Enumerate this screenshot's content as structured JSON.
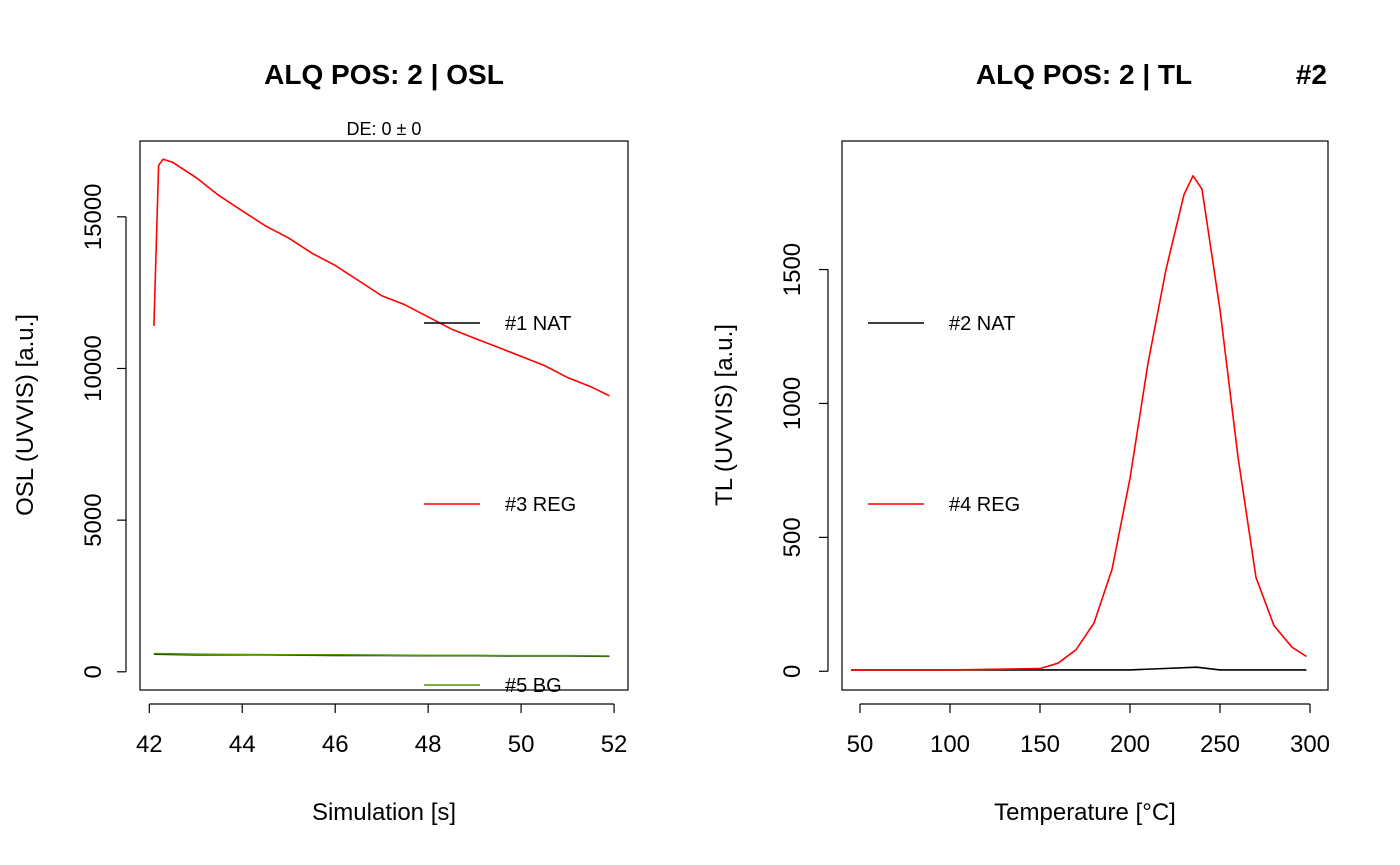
{
  "chart_data": [
    {
      "type": "line",
      "title": "ALQ POS: 2 | OSL",
      "subtitle": "DE: 0 ± 0",
      "xlabel": "Simulation [s]",
      "ylabel": "OSL (UVVIS) [a.u.]",
      "xlim": [
        41.8,
        52.3
      ],
      "ylim": [
        -600,
        17500
      ],
      "xticks": [
        42,
        44,
        46,
        48,
        50,
        52
      ],
      "yticks": [
        0,
        5000,
        10000,
        15000
      ],
      "legend_position": "right",
      "legend": [
        {
          "label": "#1 NAT",
          "color": "#000000"
        },
        {
          "label": "#3 REG",
          "color": "#ff0000"
        },
        {
          "label": "#5 BG",
          "color": "#4d9900"
        }
      ],
      "series": [
        {
          "name": "#1 NAT",
          "color": "#000000",
          "x": [
            42.1,
            43,
            44,
            45,
            46,
            47,
            48,
            49,
            50,
            51,
            51.9
          ],
          "y": [
            580,
            560,
            560,
            550,
            540,
            540,
            530,
            530,
            520,
            520,
            510
          ]
        },
        {
          "name": "#3 REG",
          "color": "#ff0000",
          "x": [
            42.1,
            42.2,
            42.3,
            42.5,
            42.7,
            43.0,
            43.5,
            44.0,
            44.5,
            45.0,
            45.5,
            46.0,
            46.5,
            47.0,
            47.5,
            48.0,
            48.5,
            49.0,
            49.5,
            50.0,
            50.5,
            51.0,
            51.5,
            51.9
          ],
          "y": [
            11400,
            16700,
            16900,
            16800,
            16600,
            16300,
            15700,
            15200,
            14700,
            14300,
            13800,
            13400,
            12900,
            12400,
            12100,
            11700,
            11300,
            11000,
            10700,
            10400,
            10100,
            9700,
            9400,
            9100
          ]
        },
        {
          "name": "#5 BG",
          "color": "#4d9900",
          "x": [
            42.1,
            43,
            44,
            45,
            46,
            47,
            48,
            49,
            50,
            51,
            51.9
          ],
          "y": [
            600,
            580,
            570,
            560,
            560,
            550,
            540,
            540,
            530,
            530,
            520
          ]
        }
      ]
    },
    {
      "type": "line",
      "title": "ALQ POS: 2 | TL",
      "title_right": "#2",
      "xlabel": "Temperature [°C]",
      "ylabel": "TL (UVVIS) [a.u.]",
      "xlim": [
        40,
        310
      ],
      "ylim": [
        -70,
        1980
      ],
      "xticks": [
        50,
        100,
        150,
        200,
        250,
        300
      ],
      "yticks": [
        0,
        500,
        1000,
        1500
      ],
      "legend_position": "left",
      "legend": [
        {
          "label": "#2 NAT",
          "color": "#000000"
        },
        {
          "label": "#4 REG",
          "color": "#ff0000"
        }
      ],
      "series": [
        {
          "name": "#2 NAT",
          "color": "#000000",
          "x": [
            45,
            100,
            150,
            200,
            237,
            250,
            298
          ],
          "y": [
            5,
            5,
            5,
            5,
            15,
            5,
            5
          ]
        },
        {
          "name": "#4 REG",
          "color": "#ff0000",
          "x": [
            45,
            100,
            150,
            160,
            170,
            180,
            190,
            200,
            210,
            220,
            230,
            235,
            240,
            250,
            260,
            270,
            280,
            290,
            298
          ],
          "y": [
            5,
            5,
            10,
            30,
            80,
            180,
            380,
            720,
            1150,
            1500,
            1780,
            1850,
            1800,
            1350,
            800,
            350,
            170,
            90,
            55
          ]
        }
      ]
    }
  ]
}
